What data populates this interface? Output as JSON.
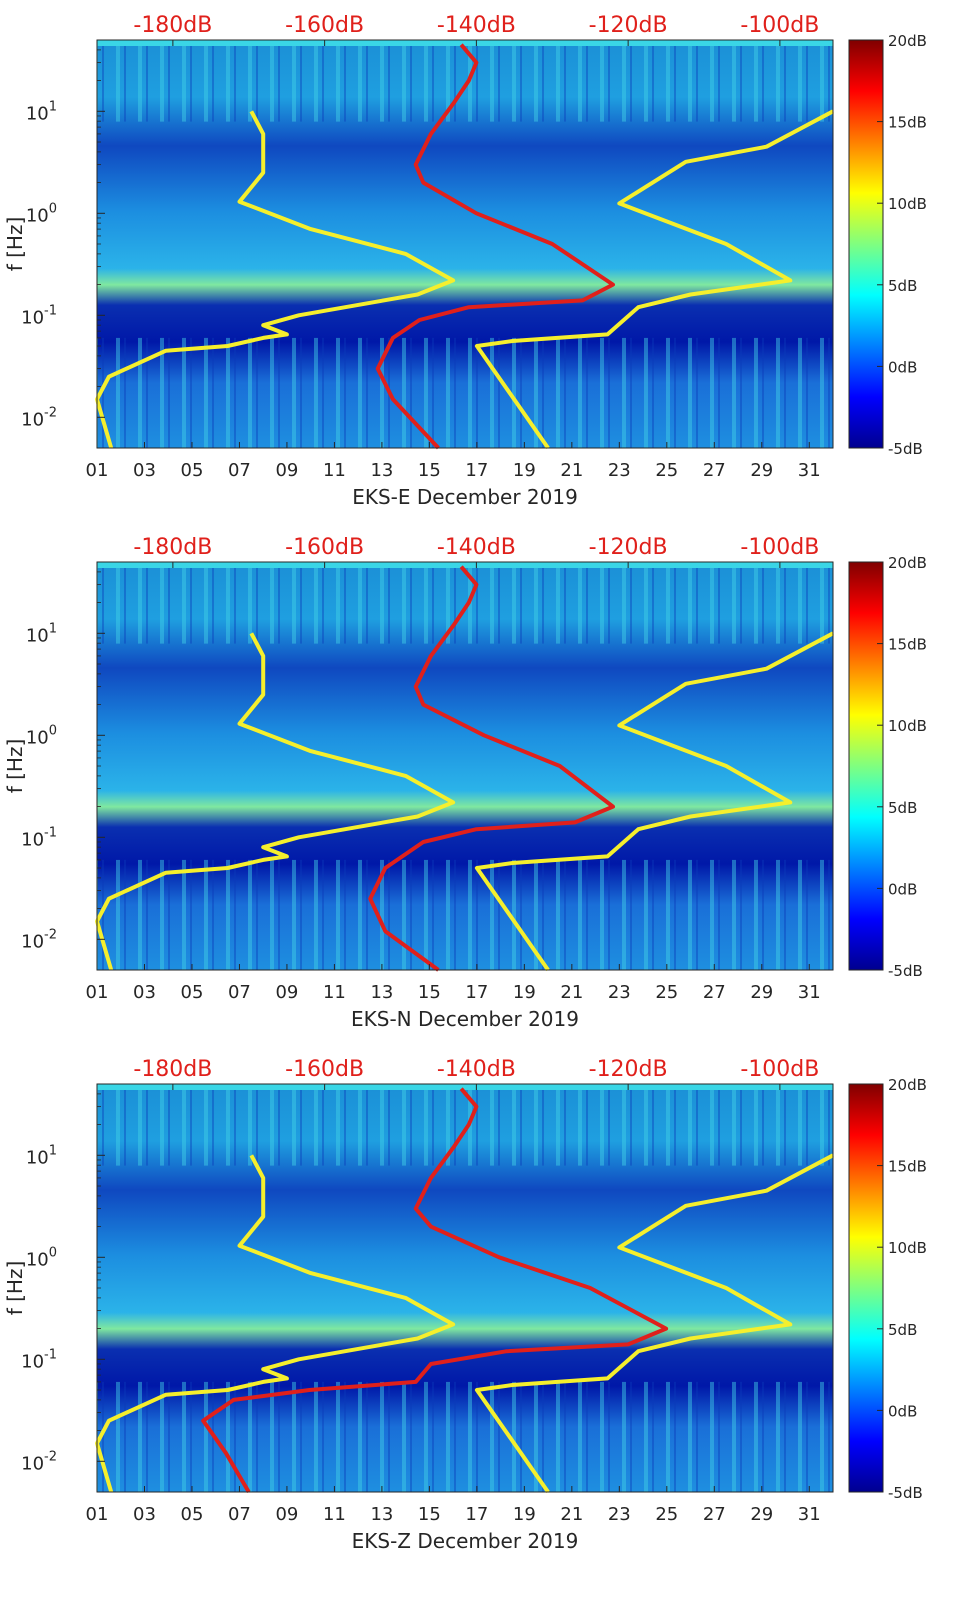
{
  "figure": {
    "title": "",
    "month": "December 2019"
  },
  "colors": {
    "red_curve": "#e0201b",
    "yellow_curve": "#f5ef2d",
    "top_axis_text": "#e0201b",
    "axis": "#262626"
  },
  "chart_data": [
    {
      "type": "heatmap",
      "panel": "EKS-E",
      "xlabel": "EKS-E December 2019",
      "ylabel": "f [Hz]",
      "xticks": [
        "01",
        "03",
        "05",
        "07",
        "09",
        "11",
        "13",
        "15",
        "17",
        "19",
        "21",
        "23",
        "25",
        "27",
        "29",
        "31"
      ],
      "xlim": [
        1,
        32
      ],
      "yscale": "log",
      "ylim": [
        0.005,
        50
      ],
      "yticks": [
        {
          "value": 0.01,
          "base": "10",
          "exp": "-2"
        },
        {
          "value": 0.1,
          "base": "10",
          "exp": "-1"
        },
        {
          "value": 1,
          "base": "10",
          "exp": "0"
        },
        {
          "value": 10,
          "base": "10",
          "exp": "1"
        }
      ],
      "top_axis": {
        "labels": [
          "-180dB",
          "-160dB",
          "-140dB",
          "-120dB",
          "-100dB"
        ],
        "values": [
          -180,
          -160,
          -140,
          -120,
          -100
        ],
        "range": [
          -190,
          -93
        ]
      },
      "colorbar": {
        "labels": [
          "20dB",
          "15dB",
          "10dB",
          "5dB",
          "0dB",
          "-5dB"
        ],
        "values": [
          20,
          15,
          10,
          5,
          0,
          -5
        ],
        "range": [
          -5,
          20
        ]
      },
      "series": [
        {
          "name": "yellow-low-curve",
          "color": "#f5ef2d",
          "axis": "bottom",
          "points": [
            [
              1.6,
              0.005
            ],
            [
              1.0,
              0.015
            ],
            [
              1.5,
              0.025
            ],
            [
              3.9,
              0.045
            ],
            [
              6.5,
              0.05
            ],
            [
              8.0,
              0.06
            ],
            [
              9.0,
              0.065
            ],
            [
              8.0,
              0.08
            ],
            [
              9.5,
              0.1
            ],
            [
              14.5,
              0.16
            ],
            [
              16.0,
              0.22
            ],
            [
              14.0,
              0.4
            ],
            [
              10.0,
              0.7
            ],
            [
              7.0,
              1.3
            ],
            [
              8.0,
              2.5
            ],
            [
              8.0,
              6.0
            ],
            [
              7.5,
              10.0
            ]
          ]
        },
        {
          "name": "yellow-high-curve",
          "color": "#f5ef2d",
          "axis": "bottom",
          "points": [
            [
              20.0,
              0.005
            ],
            [
              17.0,
              0.05
            ],
            [
              18.5,
              0.056
            ],
            [
              22.5,
              0.065
            ],
            [
              23.8,
              0.12
            ],
            [
              26.0,
              0.16
            ],
            [
              30.2,
              0.22
            ],
            [
              27.5,
              0.5
            ],
            [
              23.0,
              1.25
            ],
            [
              25.8,
              3.2
            ],
            [
              29.2,
              4.5
            ],
            [
              32.0,
              10.0
            ]
          ]
        },
        {
          "name": "red-curve",
          "color": "#e0201b",
          "axis": "top",
          "points": [
            [
              -145,
              0.005
            ],
            [
              -151,
              0.015
            ],
            [
              -153,
              0.03
            ],
            [
              -151,
              0.06
            ],
            [
              -147.5,
              0.09
            ],
            [
              -141,
              0.12
            ],
            [
              -126,
              0.14
            ],
            [
              -122,
              0.2
            ],
            [
              -130,
              0.5
            ],
            [
              -140,
              1.0
            ],
            [
              -147,
              2.0
            ],
            [
              -148,
              3.0
            ],
            [
              -146,
              6.0
            ],
            [
              -143,
              12.0
            ],
            [
              -141,
              20.0
            ],
            [
              -140,
              30.0
            ],
            [
              -142,
              45.0
            ]
          ]
        }
      ]
    },
    {
      "type": "heatmap",
      "panel": "EKS-N",
      "xlabel": "EKS-N December 2019",
      "ylabel": "f [Hz]",
      "xticks": [
        "01",
        "03",
        "05",
        "07",
        "09",
        "11",
        "13",
        "15",
        "17",
        "19",
        "21",
        "23",
        "25",
        "27",
        "29",
        "31"
      ],
      "xlim": [
        1,
        32
      ],
      "yscale": "log",
      "ylim": [
        0.005,
        50
      ],
      "yticks": [
        {
          "value": 0.01,
          "base": "10",
          "exp": "-2"
        },
        {
          "value": 0.1,
          "base": "10",
          "exp": "-1"
        },
        {
          "value": 1,
          "base": "10",
          "exp": "0"
        },
        {
          "value": 10,
          "base": "10",
          "exp": "1"
        }
      ],
      "top_axis": {
        "labels": [
          "-180dB",
          "-160dB",
          "-140dB",
          "-120dB",
          "-100dB"
        ],
        "values": [
          -180,
          -160,
          -140,
          -120,
          -100
        ],
        "range": [
          -190,
          -93
        ]
      },
      "colorbar": {
        "labels": [
          "20dB",
          "15dB",
          "10dB",
          "5dB",
          "0dB",
          "-5dB"
        ],
        "values": [
          20,
          15,
          10,
          5,
          0,
          -5
        ],
        "range": [
          -5,
          20
        ]
      },
      "series": [
        {
          "name": "yellow-low-curve",
          "color": "#f5ef2d",
          "axis": "bottom",
          "points": [
            [
              1.6,
              0.005
            ],
            [
              1.0,
              0.015
            ],
            [
              1.5,
              0.025
            ],
            [
              3.9,
              0.045
            ],
            [
              6.5,
              0.05
            ],
            [
              8.0,
              0.06
            ],
            [
              9.0,
              0.065
            ],
            [
              8.0,
              0.08
            ],
            [
              9.5,
              0.1
            ],
            [
              14.5,
              0.16
            ],
            [
              16.0,
              0.22
            ],
            [
              14.0,
              0.4
            ],
            [
              10.0,
              0.7
            ],
            [
              7.0,
              1.3
            ],
            [
              8.0,
              2.5
            ],
            [
              8.0,
              6.0
            ],
            [
              7.5,
              10.0
            ]
          ]
        },
        {
          "name": "yellow-high-curve",
          "color": "#f5ef2d",
          "axis": "bottom",
          "points": [
            [
              20.0,
              0.005
            ],
            [
              17.0,
              0.05
            ],
            [
              18.5,
              0.056
            ],
            [
              22.5,
              0.065
            ],
            [
              23.8,
              0.12
            ],
            [
              26.0,
              0.16
            ],
            [
              30.2,
              0.22
            ],
            [
              27.5,
              0.5
            ],
            [
              23.0,
              1.25
            ],
            [
              25.8,
              3.2
            ],
            [
              29.2,
              4.5
            ],
            [
              32.0,
              10.0
            ]
          ]
        },
        {
          "name": "red-curve",
          "color": "#e0201b",
          "axis": "top",
          "points": [
            [
              -145,
              0.005
            ],
            [
              -152,
              0.012
            ],
            [
              -154,
              0.025
            ],
            [
              -152,
              0.05
            ],
            [
              -147,
              0.09
            ],
            [
              -140,
              0.12
            ],
            [
              -127,
              0.14
            ],
            [
              -122,
              0.2
            ],
            [
              -129,
              0.5
            ],
            [
              -139,
              1.0
            ],
            [
              -147,
              2.0
            ],
            [
              -148,
              3.0
            ],
            [
              -146,
              6.0
            ],
            [
              -143,
              12.0
            ],
            [
              -141,
              20.0
            ],
            [
              -140,
              30.0
            ],
            [
              -142,
              45.0
            ]
          ]
        }
      ]
    },
    {
      "type": "heatmap",
      "panel": "EKS-Z",
      "xlabel": "EKS-Z December 2019",
      "ylabel": "f [Hz]",
      "xticks": [
        "01",
        "03",
        "05",
        "07",
        "09",
        "11",
        "13",
        "15",
        "17",
        "19",
        "21",
        "23",
        "25",
        "27",
        "29",
        "31"
      ],
      "xlim": [
        1,
        32
      ],
      "yscale": "log",
      "ylim": [
        0.005,
        50
      ],
      "yticks": [
        {
          "value": 0.01,
          "base": "10",
          "exp": "-2"
        },
        {
          "value": 0.1,
          "base": "10",
          "exp": "-1"
        },
        {
          "value": 1,
          "base": "10",
          "exp": "0"
        },
        {
          "value": 10,
          "base": "10",
          "exp": "1"
        }
      ],
      "top_axis": {
        "labels": [
          "-180dB",
          "-160dB",
          "-140dB",
          "-120dB",
          "-100dB"
        ],
        "values": [
          -180,
          -160,
          -140,
          -120,
          -100
        ],
        "range": [
          -190,
          -93
        ]
      },
      "colorbar": {
        "labels": [
          "20dB",
          "15dB",
          "10dB",
          "5dB",
          "0dB",
          "-5dB"
        ],
        "values": [
          20,
          15,
          10,
          5,
          0,
          -5
        ],
        "range": [
          -5,
          20
        ]
      },
      "series": [
        {
          "name": "yellow-low-curve",
          "color": "#f5ef2d",
          "axis": "bottom",
          "points": [
            [
              1.6,
              0.005
            ],
            [
              1.0,
              0.015
            ],
            [
              1.5,
              0.025
            ],
            [
              3.9,
              0.045
            ],
            [
              6.5,
              0.05
            ],
            [
              8.0,
              0.06
            ],
            [
              9.0,
              0.065
            ],
            [
              8.0,
              0.08
            ],
            [
              9.5,
              0.1
            ],
            [
              14.5,
              0.16
            ],
            [
              16.0,
              0.22
            ],
            [
              14.0,
              0.4
            ],
            [
              10.0,
              0.7
            ],
            [
              7.0,
              1.3
            ],
            [
              8.0,
              2.5
            ],
            [
              8.0,
              6.0
            ],
            [
              7.5,
              10.0
            ]
          ]
        },
        {
          "name": "yellow-high-curve",
          "color": "#f5ef2d",
          "axis": "bottom",
          "points": [
            [
              20.0,
              0.005
            ],
            [
              17.0,
              0.05
            ],
            [
              18.5,
              0.056
            ],
            [
              22.5,
              0.065
            ],
            [
              23.8,
              0.12
            ],
            [
              26.0,
              0.16
            ],
            [
              30.2,
              0.22
            ],
            [
              27.5,
              0.5
            ],
            [
              23.0,
              1.25
            ],
            [
              25.8,
              3.2
            ],
            [
              29.2,
              4.5
            ],
            [
              32.0,
              10.0
            ]
          ]
        },
        {
          "name": "red-curve",
          "color": "#e0201b",
          "axis": "top",
          "points": [
            [
              -170,
              0.005
            ],
            [
              -173,
              0.012
            ],
            [
              -176,
              0.025
            ],
            [
              -172,
              0.04
            ],
            [
              -162,
              0.05
            ],
            [
              -148,
              0.06
            ],
            [
              -146,
              0.09
            ],
            [
              -136,
              0.12
            ],
            [
              -120,
              0.14
            ],
            [
              -115,
              0.2
            ],
            [
              -125,
              0.5
            ],
            [
              -137,
              1.0
            ],
            [
              -146,
              2.0
            ],
            [
              -148,
              3.0
            ],
            [
              -146,
              6.0
            ],
            [
              -143,
              12.0
            ],
            [
              -141,
              20.0
            ],
            [
              -140,
              30.0
            ],
            [
              -142,
              45.0
            ]
          ]
        }
      ]
    }
  ]
}
